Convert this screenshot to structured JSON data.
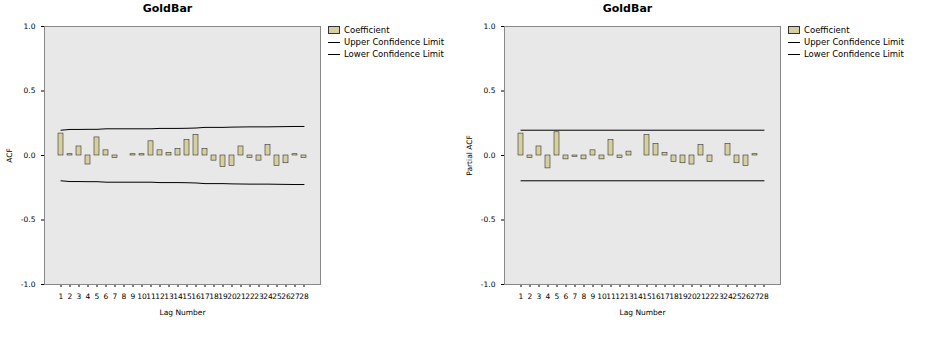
{
  "chart_data": [
    {
      "type": "bar",
      "title": "GoldBar",
      "x_label": "Lag Number",
      "y_label": "ACF",
      "categories": [
        1,
        2,
        3,
        4,
        5,
        6,
        7,
        8,
        9,
        10,
        11,
        12,
        13,
        14,
        15,
        16,
        17,
        18,
        19,
        20,
        21,
        22,
        23,
        24,
        25,
        26,
        27,
        28
      ],
      "series": [
        {
          "name": "Coefficient",
          "type": "bar",
          "color": "#d6cf9f",
          "values": [
            0.17,
            0.01,
            0.07,
            -0.07,
            0.14,
            0.04,
            -0.02,
            0.0,
            0.01,
            0.01,
            0.11,
            0.04,
            0.02,
            0.05,
            0.12,
            0.16,
            0.05,
            -0.04,
            -0.09,
            -0.08,
            0.07,
            -0.02,
            -0.04,
            0.08,
            -0.08,
            -0.06,
            0.01,
            -0.02
          ]
        },
        {
          "name": "Upper Confidence Limit",
          "type": "line",
          "color": "#000000",
          "values": [
            0.196,
            0.202,
            0.202,
            0.203,
            0.203,
            0.207,
            0.207,
            0.207,
            0.207,
            0.207,
            0.207,
            0.21,
            0.21,
            0.21,
            0.211,
            0.213,
            0.218,
            0.218,
            0.218,
            0.22,
            0.221,
            0.222,
            0.222,
            0.222,
            0.223,
            0.224,
            0.225,
            0.225
          ]
        },
        {
          "name": "Lower Confidence Limit",
          "type": "line",
          "color": "#000000",
          "values": [
            -0.196,
            -0.202,
            -0.202,
            -0.203,
            -0.203,
            -0.207,
            -0.207,
            -0.207,
            -0.207,
            -0.207,
            -0.207,
            -0.21,
            -0.21,
            -0.21,
            -0.211,
            -0.213,
            -0.218,
            -0.218,
            -0.218,
            -0.22,
            -0.221,
            -0.222,
            -0.222,
            -0.222,
            -0.223,
            -0.224,
            -0.225,
            -0.225
          ]
        }
      ],
      "ylim": [
        -1,
        1
      ],
      "yticks": [
        {
          "value": -1,
          "label": "-1.0"
        },
        {
          "value": -0.5,
          "label": "-0.5"
        },
        {
          "value": 0,
          "label": "0.0"
        },
        {
          "value": 0.5,
          "label": "0.5"
        },
        {
          "value": 1,
          "label": "1.0"
        }
      ],
      "legend": "right"
    },
    {
      "type": "bar",
      "title": "GoldBar",
      "x_label": "Lag Number",
      "y_label": "Partial ACF",
      "categories": [
        1,
        2,
        3,
        4,
        5,
        6,
        7,
        8,
        9,
        10,
        11,
        12,
        13,
        14,
        15,
        16,
        17,
        18,
        19,
        20,
        21,
        22,
        23,
        24,
        25,
        26,
        27,
        28
      ],
      "series": [
        {
          "name": "Coefficient",
          "type": "bar",
          "color": "#d6cf9f",
          "values": [
            0.17,
            -0.02,
            0.07,
            -0.1,
            0.18,
            -0.03,
            -0.01,
            -0.03,
            0.04,
            -0.03,
            0.12,
            -0.02,
            0.03,
            0.0,
            0.16,
            0.09,
            0.02,
            -0.05,
            -0.06,
            -0.07,
            0.08,
            -0.05,
            0.0,
            0.09,
            -0.06,
            -0.08,
            0.01,
            0.0
          ]
        },
        {
          "name": "Upper Confidence Limit",
          "type": "line",
          "color": "#000000",
          "values": [
            0.196,
            0.196,
            0.196,
            0.196,
            0.196,
            0.196,
            0.196,
            0.196,
            0.196,
            0.196,
            0.196,
            0.196,
            0.196,
            0.196,
            0.196,
            0.196,
            0.196,
            0.196,
            0.196,
            0.196,
            0.196,
            0.196,
            0.196,
            0.196,
            0.196,
            0.196,
            0.196,
            0.196
          ]
        },
        {
          "name": "Lower Confidence Limit",
          "type": "line",
          "color": "#000000",
          "values": [
            -0.196,
            -0.196,
            -0.196,
            -0.196,
            -0.196,
            -0.196,
            -0.196,
            -0.196,
            -0.196,
            -0.196,
            -0.196,
            -0.196,
            -0.196,
            -0.196,
            -0.196,
            -0.196,
            -0.196,
            -0.196,
            -0.196,
            -0.196,
            -0.196,
            -0.196,
            -0.196,
            -0.196,
            -0.196,
            -0.196,
            -0.196,
            -0.196
          ]
        }
      ],
      "ylim": [
        -1,
        1
      ],
      "yticks": [
        {
          "value": -1,
          "label": "-1.0"
        },
        {
          "value": -0.5,
          "label": "-0.5"
        },
        {
          "value": 0,
          "label": "0.0"
        },
        {
          "value": 0.5,
          "label": "0.5"
        },
        {
          "value": 1,
          "label": "1.0"
        }
      ],
      "legend": "right"
    }
  ]
}
